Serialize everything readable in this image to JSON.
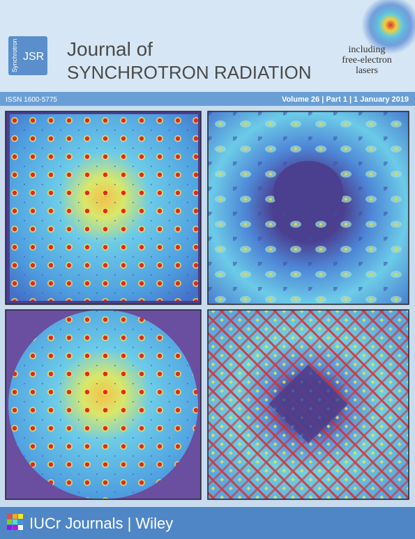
{
  "header": {
    "logo": {
      "vertical": "Synchrotron",
      "abbr": "JSR"
    },
    "title_line1": "Journal of",
    "title_line2": "SYNCHROTRON RADIATION",
    "tagline": [
      "including",
      "free-electron",
      "lasers"
    ]
  },
  "bar": {
    "issn": "ISSN 1600-5775",
    "issue": "Volume 26 | Part 1 | 1 January 2019"
  },
  "footer": {
    "text": "IUCr Journals | Wiley"
  }
}
